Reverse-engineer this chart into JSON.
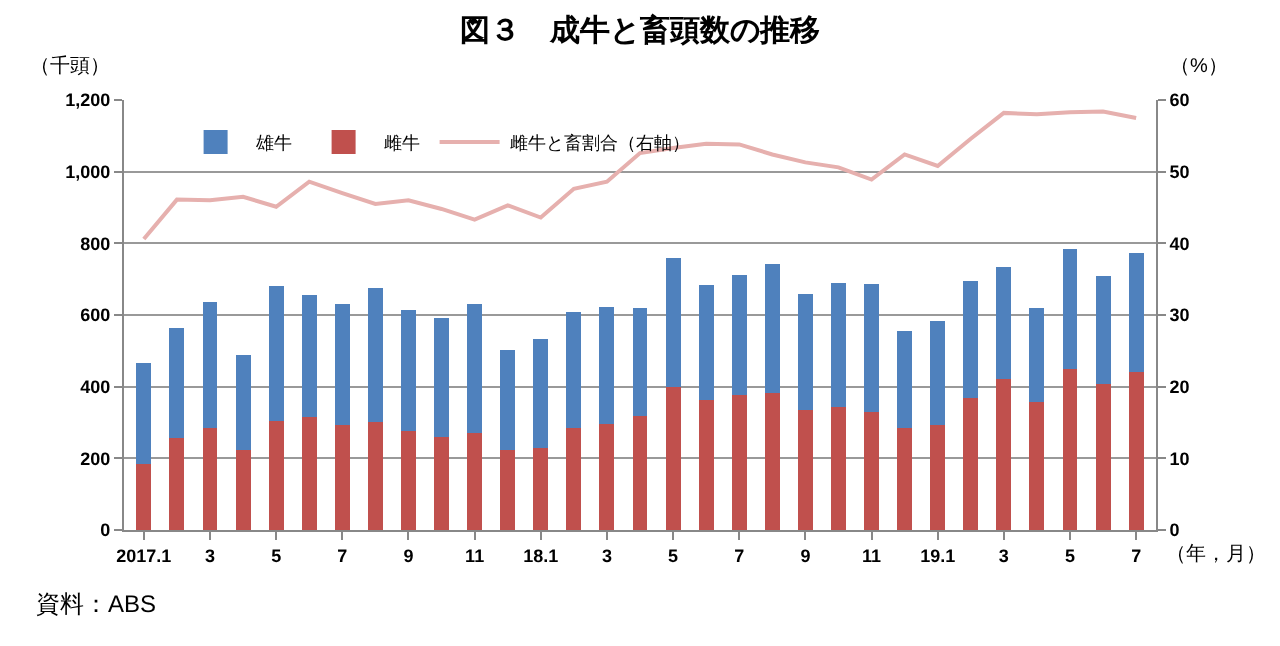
{
  "chart_data": {
    "type": "bar",
    "title": "図３　成牛と畜頭数の推移",
    "ylabel": "（千頭）",
    "y2label": "（%）",
    "xlabel": "（年，月）",
    "annotations": [
      "資料：ABS"
    ],
    "categories": [
      "2017.1",
      null,
      "3",
      null,
      "5",
      null,
      "7",
      null,
      "9",
      null,
      "11",
      null,
      "18.1",
      null,
      "3",
      null,
      "5",
      null,
      "7",
      null,
      "9",
      null,
      "11",
      null,
      "19.1",
      null,
      "3",
      null,
      "5",
      null,
      "7"
    ],
    "stacked": true,
    "series": [
      {
        "name": "雌牛",
        "color": "#c0504d",
        "values": [
          183,
          257,
          284,
          222,
          304,
          316,
          293,
          302,
          277,
          259,
          270,
          224,
          229,
          284,
          295,
          317,
          400,
          364,
          378,
          383,
          334,
          343,
          328,
          286,
          293,
          369,
          422,
          357,
          449,
          408,
          440
        ]
      },
      {
        "name": "雄牛",
        "color": "#4f81bd",
        "values": [
          282,
          307,
          352,
          266,
          376,
          341,
          339,
          374,
          336,
          332,
          360,
          278,
          305,
          325,
          326,
          302,
          360,
          321,
          334,
          359,
          325,
          346,
          359,
          270,
          289,
          325,
          313,
          263,
          336,
          300,
          332
        ]
      },
      {
        "name": "雌牛と畜割合（右軸）",
        "type": "line",
        "axis": "y2",
        "color": "#e6b0ae",
        "values": [
          40.6,
          46.1,
          46.0,
          46.5,
          45.1,
          48.6,
          47.0,
          45.5,
          46.0,
          44.8,
          43.3,
          45.3,
          43.6,
          47.6,
          48.6,
          52.6,
          53.3,
          53.9,
          53.8,
          52.4,
          51.3,
          50.6,
          48.9,
          52.4,
          50.8,
          54.6,
          58.2,
          58.0,
          58.3,
          58.4,
          57.5
        ]
      }
    ],
    "ylim": [
      0,
      1200
    ],
    "yticks": [
      0,
      200,
      400,
      600,
      800,
      {
        "value": 1000,
        "label": "1,000"
      },
      {
        "value": 1200,
        "label": "1,200"
      }
    ],
    "y2lim": [
      0,
      60
    ],
    "y2ticks": [
      0,
      10,
      20,
      30,
      40,
      50,
      60
    ],
    "grid": "y",
    "legend": "top",
    "marker": "none",
    "line_style": "solid"
  }
}
